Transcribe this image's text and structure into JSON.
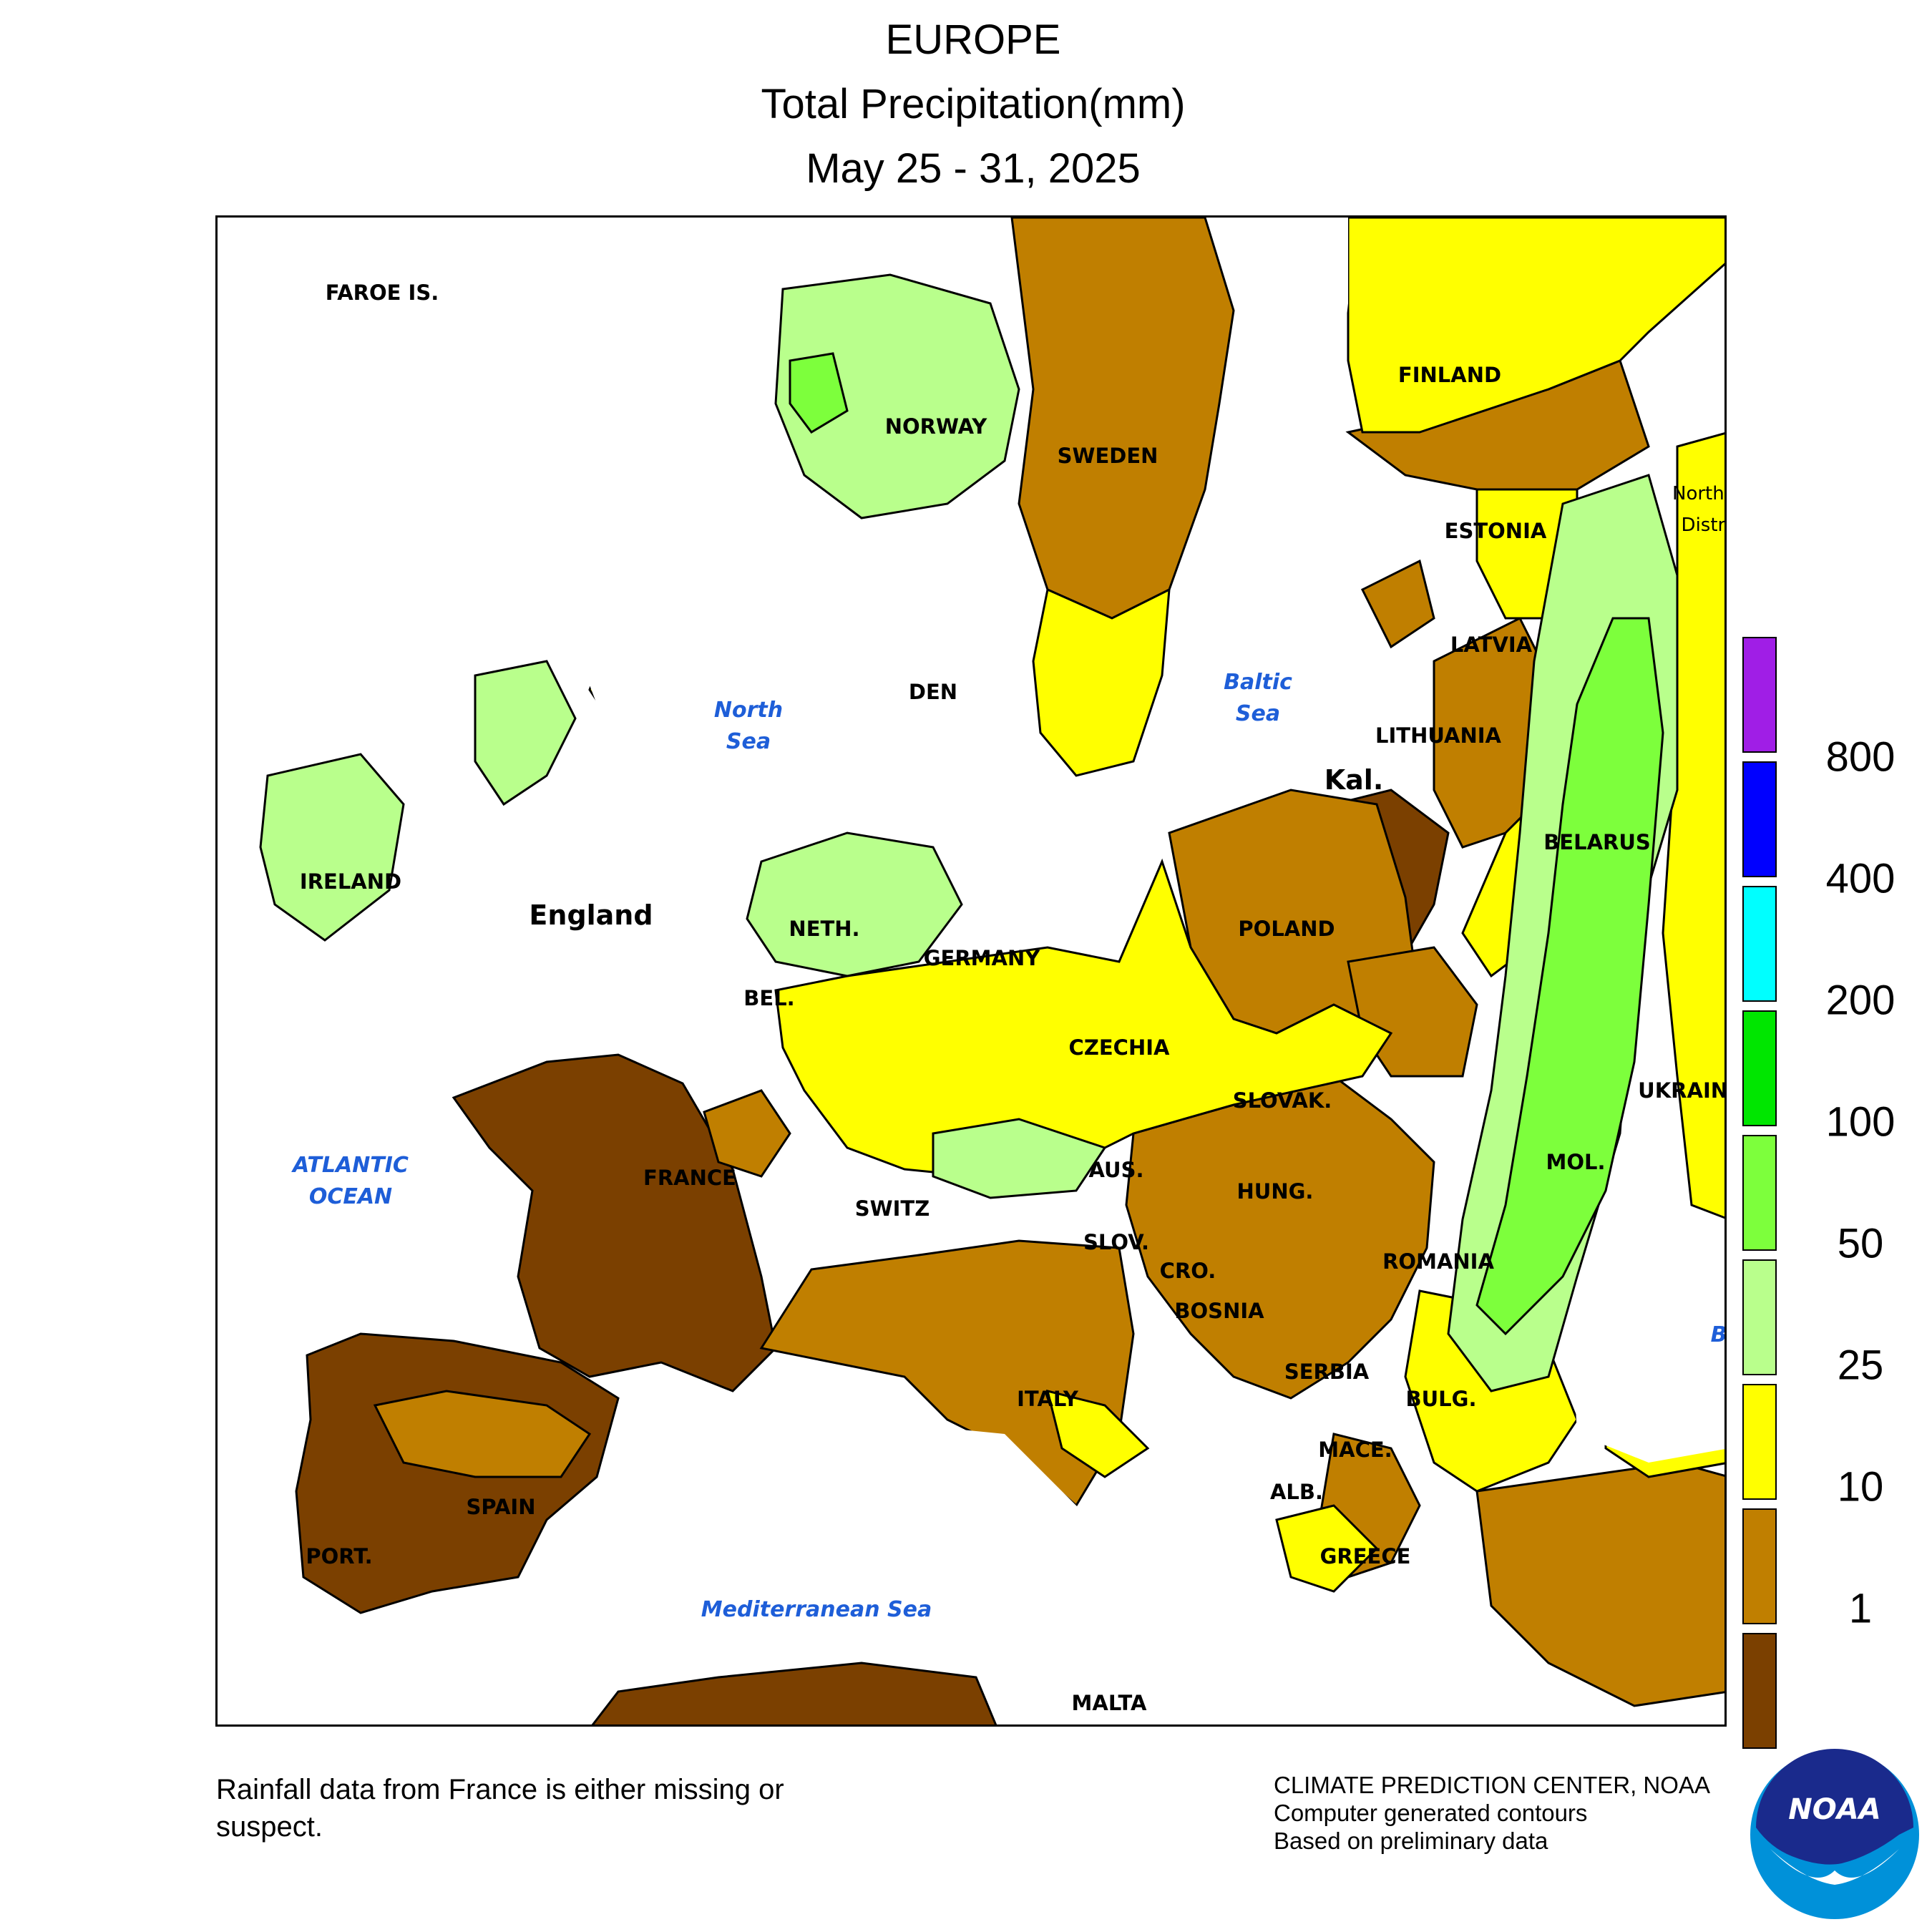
{
  "title": {
    "line1": "EUROPE",
    "line2": "Total Precipitation(mm)",
    "line3": "May 25 - 31, 2025"
  },
  "map": {
    "country_labels": {
      "faroe": "FAROE IS.",
      "norway": "NORWAY",
      "sweden": "SWEDEN",
      "finland": "FINLAND",
      "estonia": "ESTONIA",
      "latvia": "LATVIA",
      "lithuania": "LITHUANIA",
      "kal": "Kal.",
      "belarus": "BELARUS",
      "northwest": "Northw",
      "district": "Distri",
      "ireland": "IRELAND",
      "england": "England",
      "den": "DEN",
      "neth": "NETH.",
      "bel": "BEL.",
      "germany": "GERMANY",
      "poland": "POLAND",
      "czechia": "CZECHIA",
      "slovak": "SLOVAK.",
      "ukraine": "UKRAINE",
      "france": "FRANCE",
      "switz": "SWITZ",
      "aus": "AUS.",
      "hung": "HUNG.",
      "mol": "MOL.",
      "romania": "ROMANIA",
      "slov": "SLOV.",
      "cro": "CRO.",
      "bosnia": "BOSNIA",
      "serbia": "SERBIA",
      "bulg": "BULG.",
      "italy": "ITALY",
      "mace": "MACE.",
      "alb": "ALB.",
      "greece": "GREECE",
      "spain": "SPAIN",
      "port": "PORT.",
      "malta": "MALTA"
    },
    "sea_labels": {
      "north_sea": "North\nSea",
      "baltic_sea": "Baltic\nSea",
      "atlantic": "ATLANTIC\nOCEAN",
      "mediterranean": "Mediterranean Sea",
      "black_sea_partial": "B"
    }
  },
  "legend": {
    "levels": [
      "800",
      "400",
      "200",
      "100",
      "50",
      "25",
      "10",
      "1"
    ],
    "colors": [
      "#a01ee6",
      "#0000ff",
      "#00ffff",
      "#00e600",
      "#7dff3c",
      "#b9ff8c",
      "#ffff00",
      "#c07f00",
      "#7b4000"
    ]
  },
  "footer": {
    "note": "Rainfall data from France is either missing or suspect.",
    "credit1": "CLIMATE PREDICTION CENTER, NOAA",
    "credit2": "Computer generated contours",
    "credit3": "Based on preliminary data",
    "logo_text": "NOAA"
  }
}
